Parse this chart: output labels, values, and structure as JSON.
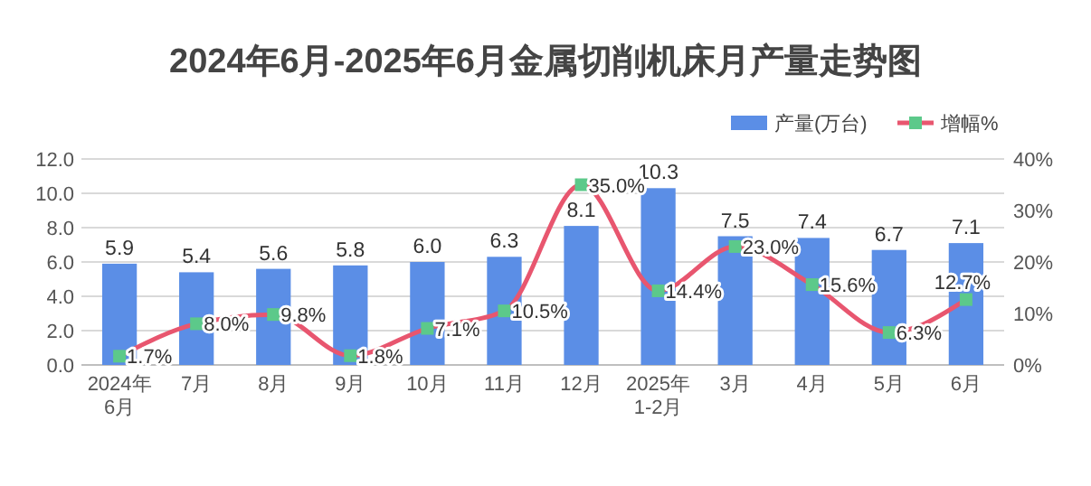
{
  "chart_data": {
    "type": "bar",
    "title": "2024年6月-2025年6月金属切削机床月产量走势图",
    "categories": [
      "2024年\n6月",
      "7月",
      "8月",
      "9月",
      "10月",
      "11月",
      "12月",
      "2025年\n1-2月",
      "3月",
      "4月",
      "5月",
      "6月"
    ],
    "series": [
      {
        "name": "产量(万台)",
        "color": "#5b8ee6",
        "values": [
          5.9,
          5.4,
          5.6,
          5.8,
          6.0,
          6.3,
          8.1,
          10.3,
          7.5,
          7.4,
          6.7,
          7.1
        ],
        "value_labels": [
          "5.9",
          "5.4",
          "5.6",
          "5.8",
          "6.0",
          "6.3",
          "8.1",
          "10.3",
          "7.5",
          "7.4",
          "6.7",
          "7.1"
        ]
      },
      {
        "name": "增幅%",
        "type": "line",
        "axis": "y2",
        "color": "#e8566f",
        "marker": "square",
        "values": [
          1.7,
          8.0,
          9.8,
          1.8,
          7.1,
          10.5,
          35.0,
          14.4,
          23.0,
          15.6,
          6.3,
          12.7
        ],
        "value_labels": [
          "1.7%",
          "8.0%",
          "9.8%",
          "1.8%",
          "7.1%",
          "10.5%",
          "35.0%",
          "14.4%",
          "23.0%",
          "15.6%",
          "6.3%",
          "12.7%"
        ]
      }
    ],
    "ylim": [
      0,
      12
    ],
    "yticks": [
      {
        "value": 0,
        "label": "0.0"
      },
      {
        "value": 2,
        "label": "2.0"
      },
      {
        "value": 4,
        "label": "4.0"
      },
      {
        "value": 6,
        "label": "6.0"
      },
      {
        "value": 8,
        "label": "8.0"
      },
      {
        "value": 10,
        "label": "10.0"
      },
      {
        "value": 12,
        "label": "12.0"
      }
    ],
    "y2lim": [
      0,
      40
    ],
    "y2ticks": [
      {
        "value": 0,
        "label": "0%"
      },
      {
        "value": 10,
        "label": "10%"
      },
      {
        "value": 20,
        "label": "20%"
      },
      {
        "value": 30,
        "label": "30%"
      },
      {
        "value": 40,
        "label": "40%"
      }
    ],
    "grid": "y",
    "legend": "top right"
  }
}
